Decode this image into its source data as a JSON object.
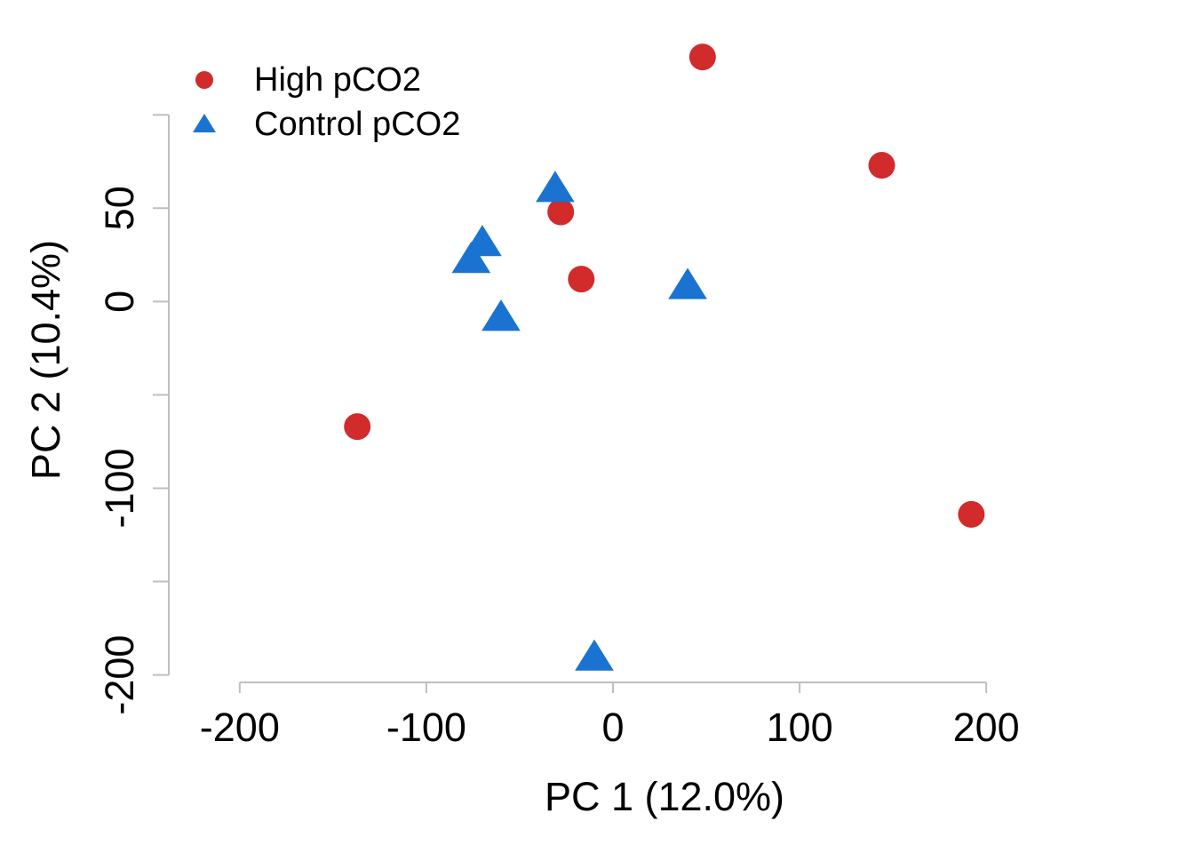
{
  "chart_data": {
    "type": "scatter",
    "xlabel": "PC 1 (12.0%)",
    "ylabel": "PC 2 (10.4%)",
    "xlim": [
      -238,
      238
    ],
    "ylim": [
      -204,
      142
    ],
    "xticks": [
      -200,
      -100,
      0,
      100,
      200
    ],
    "yticks": [
      -200,
      -150,
      -100,
      -50,
      0,
      50,
      100
    ],
    "legend": "top-left",
    "series": [
      {
        "name": "High pCO2",
        "color": "#d12b2b",
        "marker": "circle",
        "x": [
          48,
          144,
          -28,
          -17,
          -137,
          192
        ],
        "values": [
          131,
          73,
          48,
          12,
          -67,
          -114
        ]
      },
      {
        "name": "Control pCO2",
        "color": "#1b73d1",
        "marker": "triangle",
        "x": [
          -31,
          -70,
          -76,
          -60,
          40,
          -10
        ],
        "values": [
          61,
          32,
          23,
          -8,
          9,
          -190
        ]
      }
    ]
  }
}
